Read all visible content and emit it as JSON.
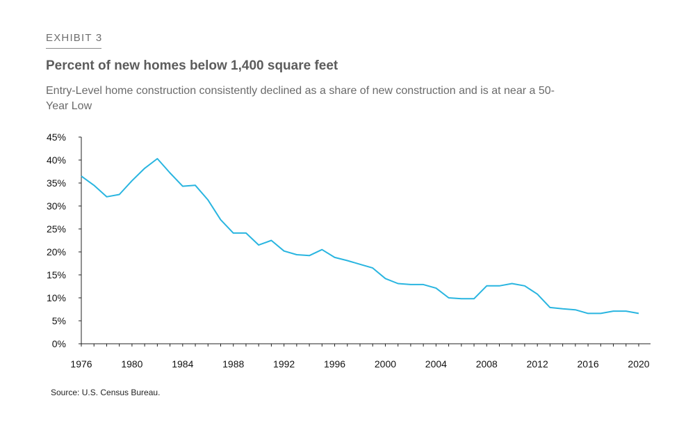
{
  "header": {
    "exhibit": "EXHIBIT 3",
    "title": "Percent of new homes below 1,400 square feet",
    "subtitle": "Entry-Level home construction consistently declined as a share of new construction and is at near a 50-Year Low"
  },
  "footer": {
    "source": "Source: U.S. Census Bureau."
  },
  "colors": {
    "line": "#29b5e0",
    "axis": "#222222"
  },
  "chart_data": {
    "type": "line",
    "title": "Percent of new homes below 1,400 square feet",
    "xlabel": "",
    "ylabel": "",
    "xlim": [
      1976,
      2020
    ],
    "ylim": [
      0,
      45
    ],
    "grid": false,
    "legend": "none",
    "x_ticks": [
      1976,
      1980,
      1984,
      1988,
      1992,
      1996,
      2000,
      2004,
      2008,
      2012,
      2016,
      2020
    ],
    "x_tick_labels": [
      "1976",
      "1980",
      "1984",
      "1988",
      "1992",
      "1996",
      "2000",
      "2004",
      "2008",
      "2012",
      "2016",
      "2020"
    ],
    "y_ticks": [
      0,
      5,
      10,
      15,
      20,
      25,
      30,
      35,
      40,
      45
    ],
    "y_tick_labels": [
      "0%",
      "5%",
      "10%",
      "15%",
      "20%",
      "25%",
      "30%",
      "35%",
      "40%",
      "45%"
    ],
    "series": [
      {
        "x": [
          1976,
          1977,
          1978,
          1979,
          1980,
          1981,
          1982,
          1983,
          1984,
          1985,
          1986,
          1987,
          1988,
          1989,
          1990,
          1991,
          1992,
          1993,
          1994,
          1995,
          1996,
          1997,
          1998,
          1999,
          2000,
          2001,
          2002,
          2003,
          2004,
          2005,
          2006,
          2007,
          2008,
          2009,
          2010,
          2011,
          2012,
          2013,
          2014,
          2015,
          2016,
          2017,
          2018,
          2019,
          2020
        ],
        "values": [
          36.5,
          34.5,
          32.0,
          32.5,
          35.5,
          38.2,
          40.3,
          37.2,
          34.3,
          34.5,
          31.3,
          27.0,
          24.1,
          24.1,
          21.5,
          22.5,
          20.2,
          19.4,
          19.2,
          20.5,
          18.8,
          18.1,
          17.3,
          16.5,
          14.2,
          13.1,
          12.9,
          12.9,
          12.1,
          10.0,
          9.8,
          9.8,
          12.6,
          12.6,
          13.1,
          12.6,
          10.8,
          7.9,
          7.6,
          7.4,
          6.6,
          6.6,
          7.1,
          7.1,
          6.6
        ]
      }
    ]
  }
}
